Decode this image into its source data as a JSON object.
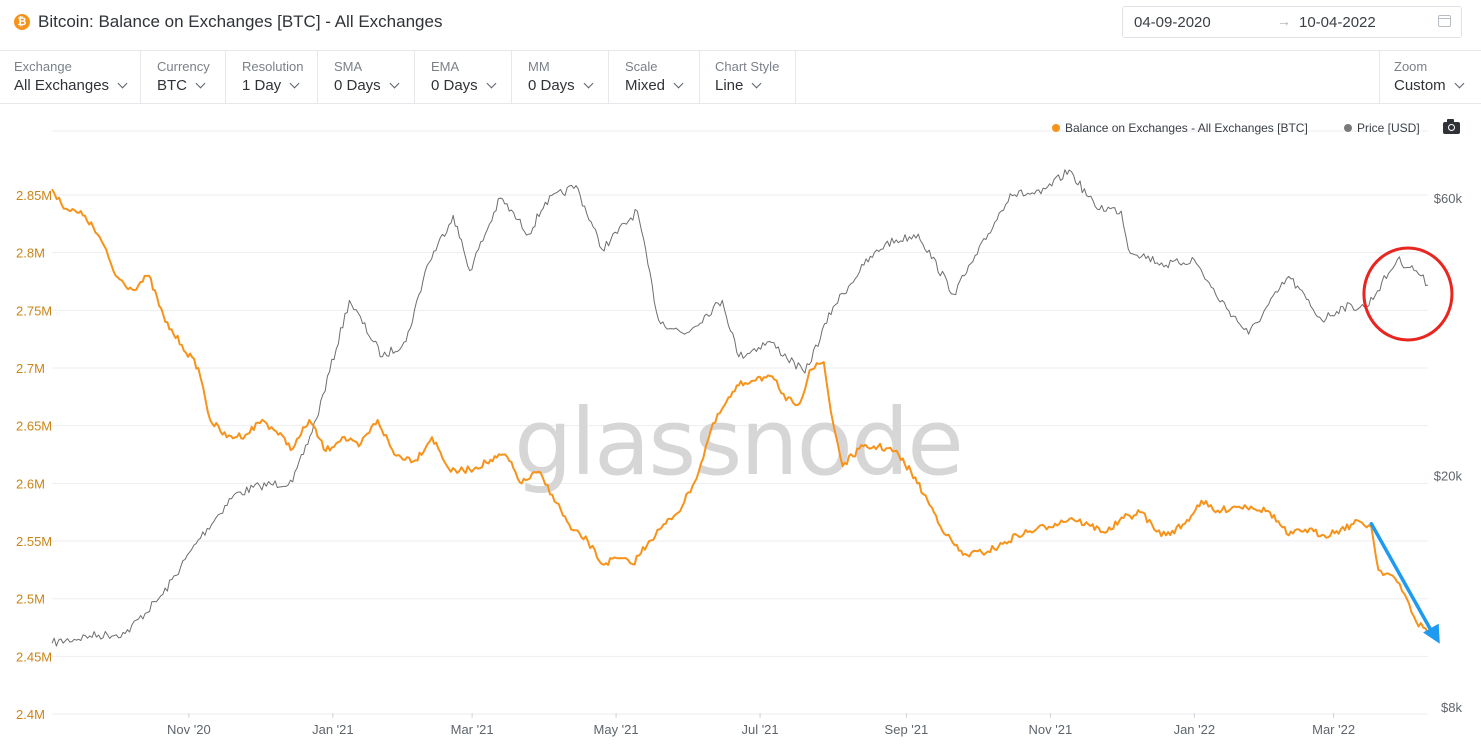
{
  "header": {
    "coin_icon": "bitcoin-icon",
    "title": "Bitcoin: Balance on Exchanges [BTC] - All Exchanges",
    "date_from": "04-09-2020",
    "date_arrow": "→",
    "date_to": "10-04-2022",
    "calendar_icon": "calendar-icon"
  },
  "toolbar": {
    "exchange": {
      "label": "Exchange",
      "value": "All Exchanges"
    },
    "currency": {
      "label": "Currency",
      "value": "BTC"
    },
    "resolution": {
      "label": "Resolution",
      "value": "1 Day"
    },
    "sma": {
      "label": "SMA",
      "value": "0 Days"
    },
    "ema": {
      "label": "EMA",
      "value": "0 Days"
    },
    "mm": {
      "label": "MM",
      "value": "0 Days"
    },
    "scale": {
      "label": "Scale",
      "value": "Mixed"
    },
    "chart_style": {
      "label": "Chart Style",
      "value": "Line"
    },
    "zoom": {
      "label": "Zoom",
      "value": "Custom"
    }
  },
  "legend": {
    "balance": "Balance on Exchanges - All Exchanges [BTC]",
    "price": "Price [USD]",
    "camera_icon": "camera-icon"
  },
  "watermark": "glassnode",
  "colors": {
    "balance": "#f7931a",
    "price": "#6e6e6e",
    "annotation_circle": "#e8251f",
    "annotation_arrow": "#1e9bf0",
    "grid": "#eceef0"
  },
  "chart_data": {
    "type": "line",
    "x_type": "date",
    "x_range": [
      "2020-09-04",
      "2022-04-10"
    ],
    "x_ticks": [
      "Nov '20",
      "Jan '21",
      "Mar '21",
      "May '21",
      "Jul '21",
      "Sep '21",
      "Nov '21",
      "Jan '22",
      "Mar '22"
    ],
    "y_left": {
      "ticks": [
        "2.4M",
        "2.45M",
        "2.5M",
        "2.55M",
        "2.6M",
        "2.65M",
        "2.7M",
        "2.75M",
        "2.8M",
        "2.85M"
      ],
      "range": [
        2400000,
        2860000
      ]
    },
    "y_right": {
      "scale": "log",
      "ticks": [
        "$8k",
        "$20k",
        "$60k"
      ],
      "range": [
        8000,
        68000
      ]
    },
    "grid": "horizontal",
    "legend_position": "top-right",
    "series": [
      {
        "name": "Balance on Exchanges - All Exchanges [BTC]",
        "axis": "left",
        "points": [
          [
            "2020-09-04",
            2855000
          ],
          [
            "2020-09-10",
            2838000
          ],
          [
            "2020-09-18",
            2832000
          ],
          [
            "2020-09-25",
            2810000
          ],
          [
            "2020-10-01",
            2780000
          ],
          [
            "2020-10-08",
            2768000
          ],
          [
            "2020-10-15",
            2780000
          ],
          [
            "2020-10-22",
            2740000
          ],
          [
            "2020-10-29",
            2720000
          ],
          [
            "2020-11-05",
            2700000
          ],
          [
            "2020-11-10",
            2655000
          ],
          [
            "2020-11-17",
            2640000
          ],
          [
            "2020-11-25",
            2642000
          ],
          [
            "2020-12-02",
            2655000
          ],
          [
            "2020-12-08",
            2645000
          ],
          [
            "2020-12-15",
            2630000
          ],
          [
            "2020-12-22",
            2655000
          ],
          [
            "2020-12-29",
            2628000
          ],
          [
            "2021-01-05",
            2640000
          ],
          [
            "2021-01-12",
            2632000
          ],
          [
            "2021-01-20",
            2655000
          ],
          [
            "2021-01-27",
            2625000
          ],
          [
            "2021-02-05",
            2620000
          ],
          [
            "2021-02-12",
            2640000
          ],
          [
            "2021-02-20",
            2610000
          ],
          [
            "2021-02-28",
            2612000
          ],
          [
            "2021-03-07",
            2618000
          ],
          [
            "2021-03-15",
            2625000
          ],
          [
            "2021-03-22",
            2600000
          ],
          [
            "2021-03-29",
            2610000
          ],
          [
            "2021-04-04",
            2590000
          ],
          [
            "2021-04-12",
            2560000
          ],
          [
            "2021-04-19",
            2550000
          ],
          [
            "2021-04-25",
            2530000
          ],
          [
            "2021-05-02",
            2535000
          ],
          [
            "2021-05-08",
            2530000
          ],
          [
            "2021-05-15",
            2550000
          ],
          [
            "2021-05-22",
            2565000
          ],
          [
            "2021-05-29",
            2580000
          ],
          [
            "2021-06-05",
            2610000
          ],
          [
            "2021-06-10",
            2645000
          ],
          [
            "2021-06-15",
            2665000
          ],
          [
            "2021-06-22",
            2685000
          ],
          [
            "2021-06-30",
            2692000
          ],
          [
            "2021-07-07",
            2690000
          ],
          [
            "2021-07-12",
            2672000
          ],
          [
            "2021-07-18",
            2670000
          ],
          [
            "2021-07-22",
            2698000
          ],
          [
            "2021-07-28",
            2705000
          ],
          [
            "2021-07-31",
            2662000
          ],
          [
            "2021-08-05",
            2615000
          ],
          [
            "2021-08-12",
            2630000
          ],
          [
            "2021-08-20",
            2632000
          ],
          [
            "2021-08-27",
            2628000
          ],
          [
            "2021-09-03",
            2610000
          ],
          [
            "2021-09-10",
            2585000
          ],
          [
            "2021-09-18",
            2555000
          ],
          [
            "2021-09-25",
            2538000
          ],
          [
            "2021-10-03",
            2540000
          ],
          [
            "2021-10-10",
            2545000
          ],
          [
            "2021-10-18",
            2555000
          ],
          [
            "2021-10-26",
            2560000
          ],
          [
            "2021-11-03",
            2565000
          ],
          [
            "2021-11-10",
            2570000
          ],
          [
            "2021-11-18",
            2563000
          ],
          [
            "2021-11-25",
            2558000
          ],
          [
            "2021-12-02",
            2570000
          ],
          [
            "2021-12-10",
            2575000
          ],
          [
            "2021-12-15",
            2560000
          ],
          [
            "2021-12-20",
            2555000
          ],
          [
            "2021-12-28",
            2565000
          ],
          [
            "2022-01-04",
            2585000
          ],
          [
            "2022-01-10",
            2575000
          ],
          [
            "2022-01-18",
            2580000
          ],
          [
            "2022-01-25",
            2580000
          ],
          [
            "2022-02-02",
            2575000
          ],
          [
            "2022-02-10",
            2555000
          ],
          [
            "2022-02-17",
            2560000
          ],
          [
            "2022-02-25",
            2555000
          ],
          [
            "2022-03-04",
            2560000
          ],
          [
            "2022-03-12",
            2567000
          ],
          [
            "2022-03-17",
            2562000
          ],
          [
            "2022-03-20",
            2525000
          ],
          [
            "2022-03-26",
            2520000
          ],
          [
            "2022-04-01",
            2500000
          ],
          [
            "2022-04-05",
            2480000
          ],
          [
            "2022-04-08",
            2475000
          ],
          [
            "2022-04-10",
            2470000
          ]
        ]
      },
      {
        "name": "Price [USD]",
        "axis": "right",
        "points": [
          [
            "2020-09-04",
            10300
          ],
          [
            "2020-09-20",
            10600
          ],
          [
            "2020-10-05",
            10700
          ],
          [
            "2020-10-21",
            12500
          ],
          [
            "2020-11-05",
            15500
          ],
          [
            "2020-11-20",
            18500
          ],
          [
            "2020-12-01",
            19200
          ],
          [
            "2020-12-15",
            19500
          ],
          [
            "2020-12-25",
            25000
          ],
          [
            "2021-01-08",
            40000
          ],
          [
            "2021-01-22",
            32000
          ],
          [
            "2021-02-01",
            34000
          ],
          [
            "2021-02-10",
            46000
          ],
          [
            "2021-02-21",
            56000
          ],
          [
            "2021-02-28",
            45000
          ],
          [
            "2021-03-13",
            60000
          ],
          [
            "2021-03-25",
            52000
          ],
          [
            "2021-04-01",
            59000
          ],
          [
            "2021-04-14",
            63000
          ],
          [
            "2021-04-25",
            49000
          ],
          [
            "2021-05-10",
            57000
          ],
          [
            "2021-05-19",
            37000
          ],
          [
            "2021-05-30",
            35000
          ],
          [
            "2021-06-15",
            40000
          ],
          [
            "2021-06-22",
            32000
          ],
          [
            "2021-07-05",
            34000
          ],
          [
            "2021-07-20",
            30000
          ],
          [
            "2021-08-01",
            39000
          ],
          [
            "2021-08-14",
            46000
          ],
          [
            "2021-08-23",
            50000
          ],
          [
            "2021-09-06",
            52000
          ],
          [
            "2021-09-21",
            41000
          ],
          [
            "2021-10-01",
            48000
          ],
          [
            "2021-10-15",
            61000
          ],
          [
            "2021-10-28",
            61000
          ],
          [
            "2021-11-09",
            67000
          ],
          [
            "2021-11-20",
            58000
          ],
          [
            "2021-12-01",
            57000
          ],
          [
            "2021-12-04",
            49000
          ],
          [
            "2021-12-20",
            46000
          ],
          [
            "2022-01-01",
            47000
          ],
          [
            "2022-01-10",
            41000
          ],
          [
            "2022-01-24",
            35000
          ],
          [
            "2022-02-10",
            44000
          ],
          [
            "2022-02-24",
            37000
          ],
          [
            "2022-03-05",
            39000
          ],
          [
            "2022-03-15",
            39000
          ],
          [
            "2022-03-28",
            47000
          ],
          [
            "2022-04-05",
            45000
          ],
          [
            "2022-04-10",
            42500
          ]
        ]
      }
    ],
    "annotations": [
      {
        "type": "circle",
        "color": "red",
        "around": "Price [USD]",
        "from": "2022-03-20",
        "to": "2022-04-14"
      },
      {
        "type": "arrow",
        "color": "blue",
        "along": "Balance on Exchanges - All Exchanges [BTC]",
        "from": "2022-03-17",
        "to": "2022-04-15"
      }
    ]
  }
}
